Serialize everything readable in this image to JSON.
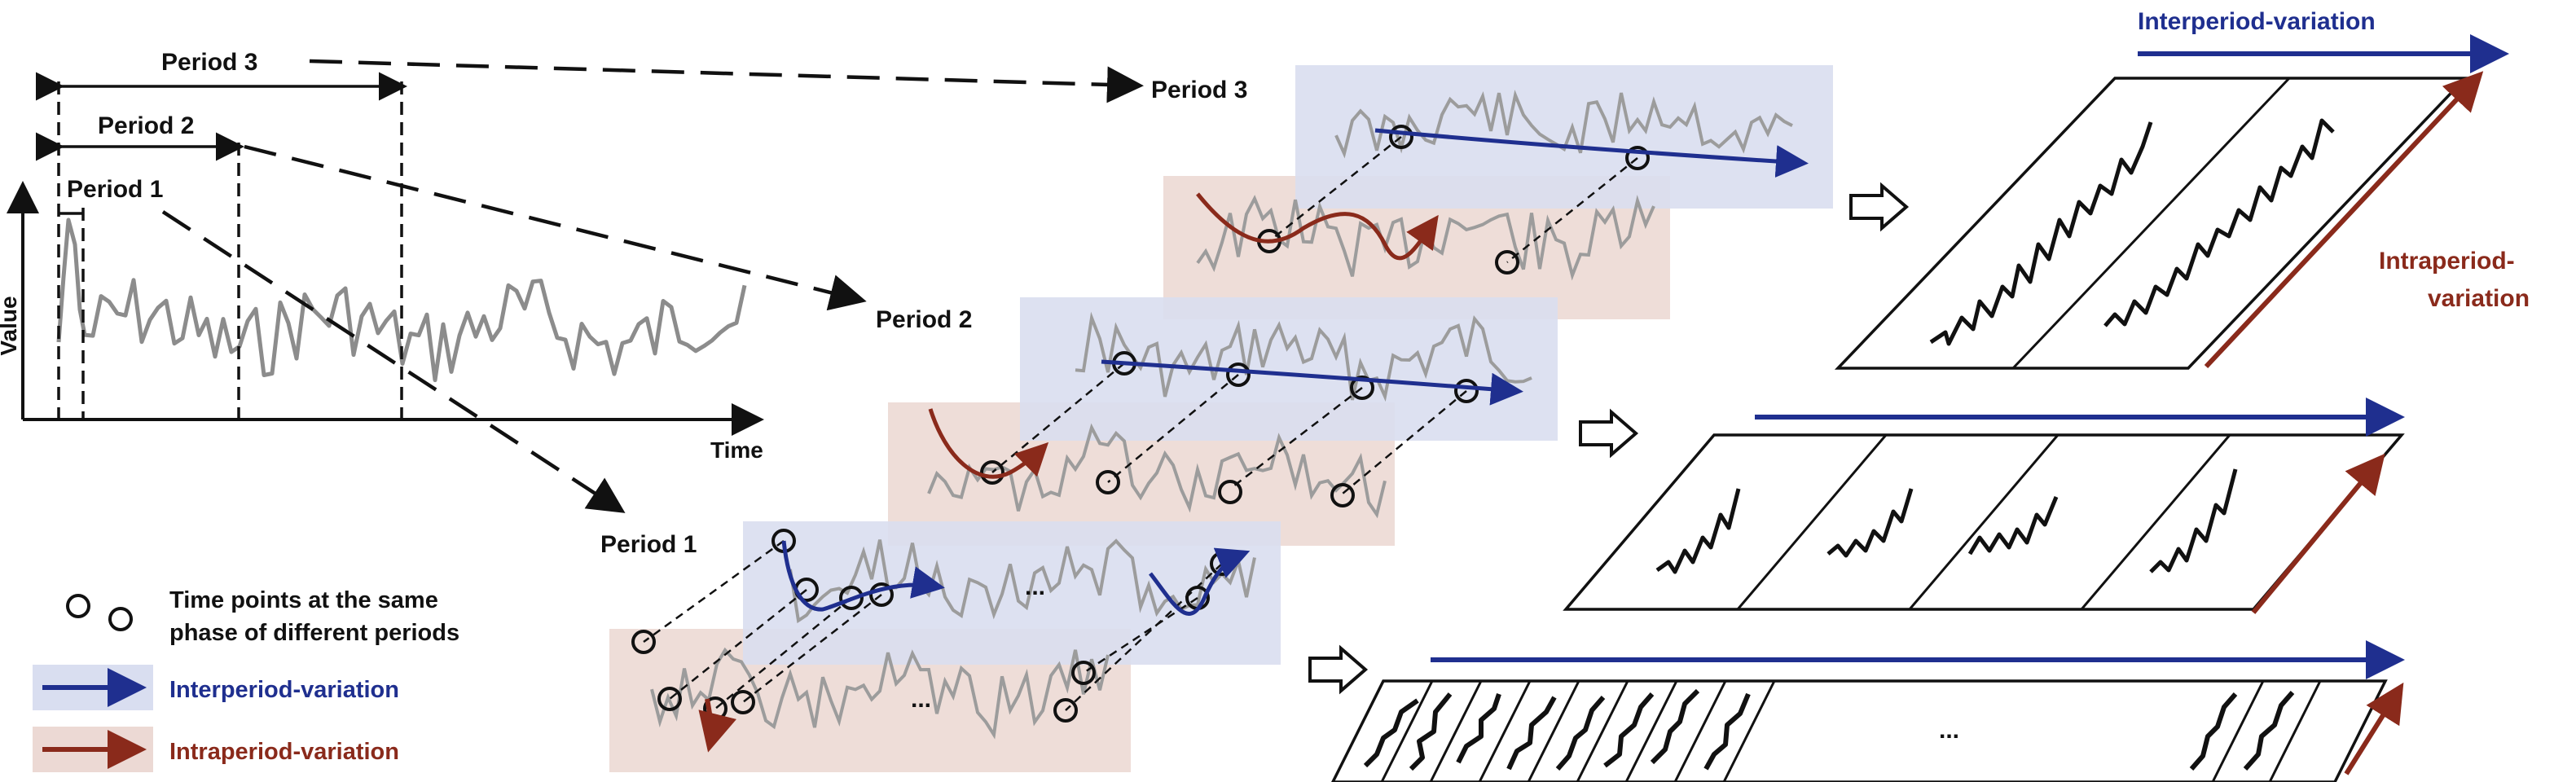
{
  "colors": {
    "inter": "#1f2f8f",
    "intra": "#8a2a1b",
    "inter_band": "#d9def0",
    "intra_band": "#ecd9d4",
    "series": "#8c8c8c"
  },
  "left_plot": {
    "y_label": "Value",
    "x_label": "Time",
    "periods": [
      "Period 1",
      "Period 2",
      "Period 3"
    ]
  },
  "stack_labels": {
    "period3": "Period 3",
    "period2": "Period 2",
    "period1": "Period 1",
    "ellipsis": "..."
  },
  "right_labels": {
    "inter": "Interperiod-variation",
    "intra_line1": "Intraperiod-",
    "intra_line2": "variation",
    "ellipsis": "..."
  },
  "legend": {
    "points": "Time points at the same\nphase of different periods",
    "points_line1": "Time points at the same",
    "points_line2": "phase of different periods",
    "inter": "Interperiod-variation",
    "intra": "Intraperiod-variation"
  }
}
